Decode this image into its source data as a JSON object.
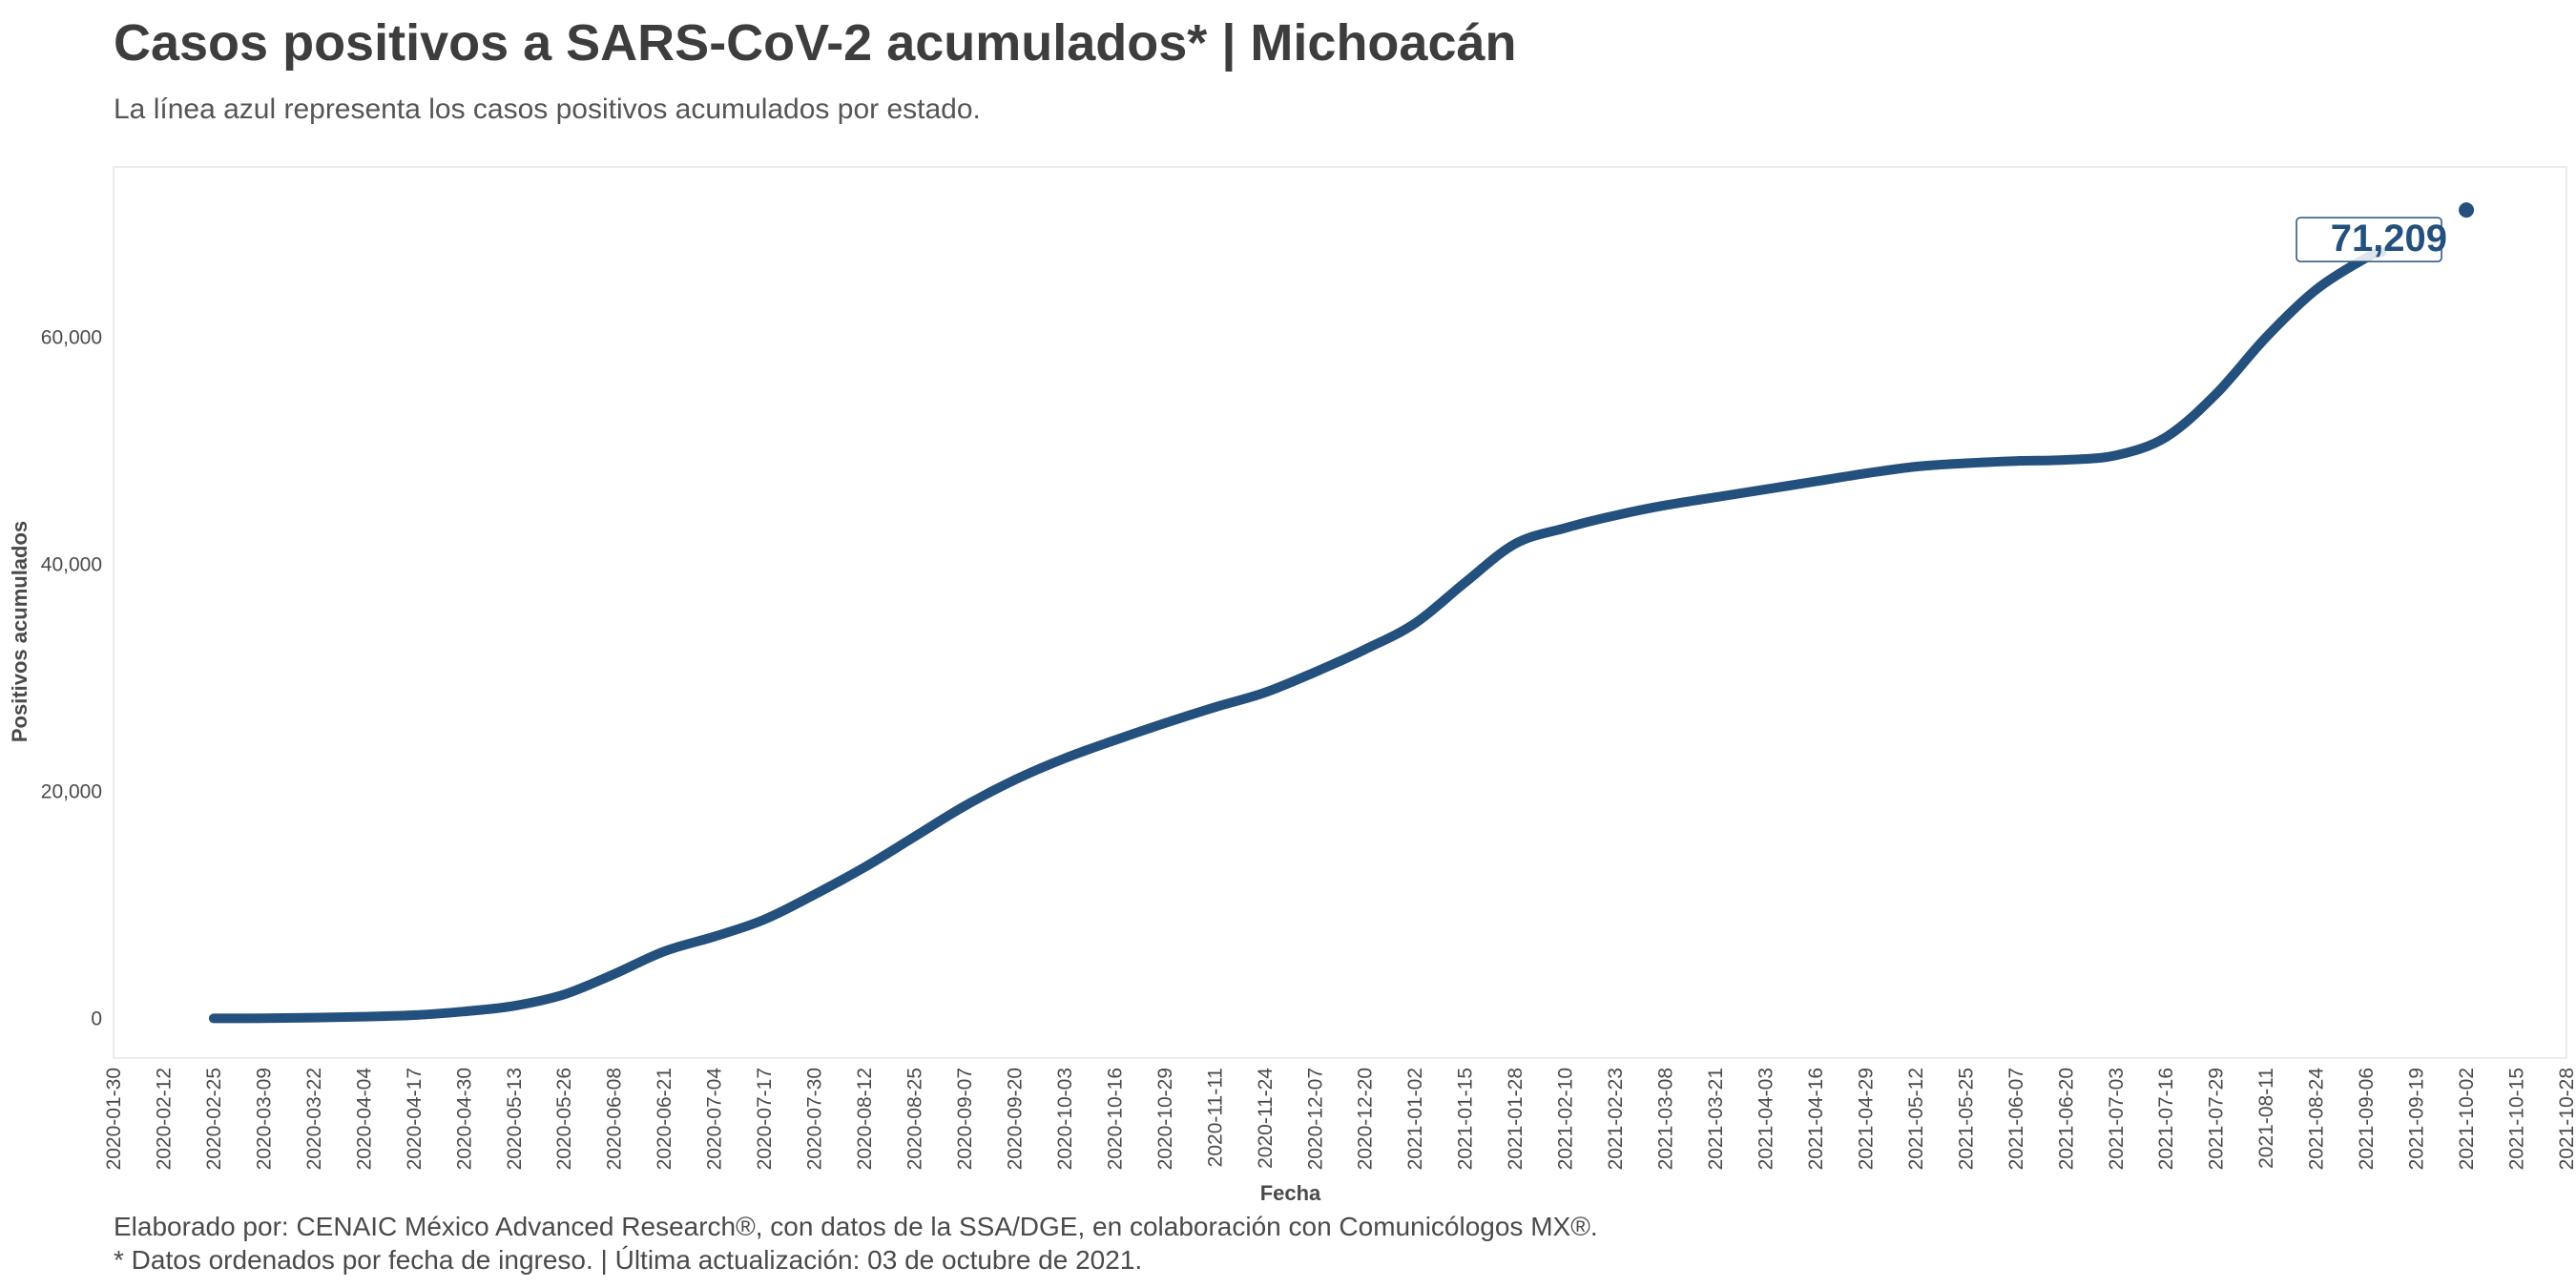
{
  "title": "Casos positivos a SARS-CoV-2 acumulados* | Michoacán",
  "subtitle": "La línea azul representa los casos positivos acumulados por estado.",
  "caption_line1": "Elaborado por: CENAIC México Advanced Research®, con datos de la SSA/DGE, en colaboración con Comunicólogos MX®.",
  "caption_line2": "* Datos ordenados por fecha de ingreso. | Última actualización: 03 de octubre de 2021.",
  "chart_data": {
    "type": "line",
    "xlabel": "Fecha",
    "ylabel": "Positivos acumulados",
    "xlim": [
      "2020-01-30",
      "2021-10-28"
    ],
    "ylim": [
      -3500,
      75000
    ],
    "x_ticks": [
      "2020-01-30",
      "2020-02-12",
      "2020-02-25",
      "2020-03-09",
      "2020-03-22",
      "2020-04-04",
      "2020-04-17",
      "2020-04-30",
      "2020-05-13",
      "2020-05-26",
      "2020-06-08",
      "2020-06-21",
      "2020-07-04",
      "2020-07-17",
      "2020-07-30",
      "2020-08-12",
      "2020-08-25",
      "2020-09-07",
      "2020-09-20",
      "2020-10-03",
      "2020-10-16",
      "2020-10-29",
      "2020-11-11",
      "2020-11-24",
      "2020-12-07",
      "2020-12-20",
      "2021-01-02",
      "2021-01-15",
      "2021-01-28",
      "2021-02-10",
      "2021-02-23",
      "2021-03-08",
      "2021-03-21",
      "2021-04-03",
      "2021-04-16",
      "2021-04-29",
      "2021-05-12",
      "2021-05-25",
      "2021-06-07",
      "2021-06-20",
      "2021-07-03",
      "2021-07-16",
      "2021-07-29",
      "2021-08-11",
      "2021-08-24",
      "2021-09-06",
      "2021-09-19",
      "2021-10-02",
      "2021-10-15",
      "2021-10-28"
    ],
    "y_ticks": [
      0,
      20000,
      40000,
      60000
    ],
    "y_tick_labels": [
      "0",
      "20,000",
      "40,000",
      "60,000"
    ],
    "grid": false,
    "line_color": "#23507d",
    "end_label": "71,209",
    "end_point": {
      "x": "2021-10-02",
      "y": 71209
    },
    "series": [
      {
        "x": [
          "2020-02-25",
          "2020-03-09",
          "2020-03-22",
          "2020-04-04",
          "2020-04-17",
          "2020-04-30",
          "2020-05-13",
          "2020-05-26",
          "2020-06-08",
          "2020-06-21",
          "2020-07-04",
          "2020-07-17",
          "2020-07-30",
          "2020-08-12",
          "2020-08-25",
          "2020-09-07",
          "2020-09-20",
          "2020-10-03",
          "2020-10-16",
          "2020-10-29",
          "2020-11-11",
          "2020-11-24",
          "2020-12-07",
          "2020-12-20",
          "2021-01-02",
          "2021-01-15",
          "2021-01-28",
          "2021-02-10",
          "2021-02-23",
          "2021-03-08",
          "2021-03-21",
          "2021-04-03",
          "2021-04-16",
          "2021-04-29",
          "2021-05-12",
          "2021-05-25",
          "2021-06-07",
          "2021-06-20",
          "2021-07-03",
          "2021-07-16",
          "2021-07-29",
          "2021-08-11",
          "2021-08-24",
          "2021-09-06",
          "2021-09-10"
        ],
        "y": [
          0,
          10,
          60,
          150,
          280,
          600,
          1100,
          2100,
          3900,
          5900,
          7200,
          8700,
          10900,
          13300,
          16000,
          18700,
          21000,
          22900,
          24500,
          26000,
          27400,
          28700,
          30500,
          32500,
          34800,
          38400,
          41800,
          43200,
          44300,
          45200,
          45900,
          46600,
          47300,
          48000,
          48600,
          48900,
          49100,
          49200,
          49600,
          51200,
          55000,
          60000,
          64200,
          67000,
          67500
        ]
      }
    ]
  }
}
